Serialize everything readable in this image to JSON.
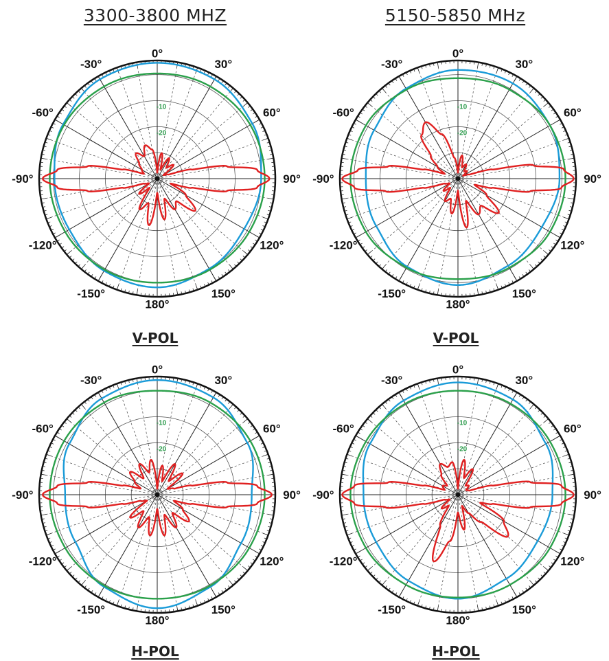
{
  "column_titles": [
    "3300-3800 MHZ",
    "5150-5850 MHz"
  ],
  "row_labels": [
    "V-POL",
    "V-POL",
    "H-POL",
    "H-POL"
  ],
  "chart_data": [
    {
      "type": "polar",
      "title": "3300-3800 MHZ",
      "xlabel": "V-POL",
      "angle_labels": [
        "0°",
        "30°",
        "60°",
        "90°",
        "120°",
        "150°",
        "180°",
        "-150°",
        "-120°",
        "-90°",
        "-60°",
        "-30°"
      ],
      "radial_labels": [
        "-10",
        "-20"
      ],
      "series": [
        {
          "color": "#1a9bd8",
          "theta": [
            0,
            30,
            60,
            90,
            120,
            150,
            180,
            210,
            240,
            270,
            300,
            330
          ],
          "r": [
            0.98,
            0.97,
            0.93,
            0.88,
            0.85,
            0.88,
            0.92,
            0.9,
            0.86,
            0.87,
            0.92,
            0.97
          ]
        },
        {
          "color": "#2aa04a",
          "theta": [
            0,
            30,
            60,
            90,
            120,
            150,
            180,
            210,
            240,
            270,
            300,
            330
          ],
          "r": [
            0.89,
            0.9,
            0.91,
            0.91,
            0.9,
            0.89,
            0.88,
            0.89,
            0.9,
            0.91,
            0.91,
            0.9
          ]
        },
        {
          "color": "#e02020",
          "theta": [
            0,
            10,
            20,
            30,
            40,
            50,
            60,
            70,
            75,
            80,
            85,
            90,
            95,
            100,
            105,
            110,
            120,
            130,
            140,
            150,
            160,
            170,
            180,
            190,
            200,
            210,
            220,
            230,
            240,
            250,
            255,
            260,
            265,
            270,
            275,
            280,
            285,
            290,
            300,
            310,
            320,
            330,
            340,
            350,
            360
          ],
          "r": [
            0.05,
            0.22,
            0.08,
            0.2,
            0.12,
            0.18,
            0.06,
            0.1,
            0.3,
            0.6,
            0.85,
            0.95,
            0.85,
            0.6,
            0.3,
            0.12,
            0.28,
            0.42,
            0.25,
            0.3,
            0.18,
            0.35,
            0.12,
            0.4,
            0.22,
            0.3,
            0.1,
            0.2,
            0.08,
            0.12,
            0.3,
            0.6,
            0.85,
            0.97,
            0.85,
            0.6,
            0.3,
            0.12,
            0.15,
            0.2,
            0.28,
            0.22,
            0.3,
            0.25,
            0.05
          ]
        }
      ]
    },
    {
      "type": "polar",
      "title": "5150-5850 MHz",
      "xlabel": "V-POL",
      "angle_labels": [
        "0°",
        "30°",
        "60°",
        "90°",
        "120°",
        "150°",
        "180°",
        "-150°",
        "-120°",
        "-90°",
        "-60°",
        "-30°"
      ],
      "radial_labels": [
        "-10",
        "-20"
      ],
      "series": [
        {
          "color": "#1a9bd8",
          "theta": [
            0,
            30,
            60,
            90,
            120,
            150,
            180,
            210,
            240,
            270,
            300,
            330
          ],
          "r": [
            0.92,
            0.93,
            0.9,
            0.86,
            0.82,
            0.85,
            0.9,
            0.86,
            0.8,
            0.78,
            0.82,
            0.88
          ]
        },
        {
          "color": "#2aa04a",
          "theta": [
            0,
            30,
            60,
            90,
            120,
            150,
            180,
            210,
            240,
            270,
            300,
            330
          ],
          "r": [
            0.85,
            0.87,
            0.9,
            0.91,
            0.9,
            0.87,
            0.85,
            0.87,
            0.9,
            0.91,
            0.9,
            0.87
          ]
        },
        {
          "color": "#e02020",
          "theta": [
            0,
            10,
            20,
            30,
            40,
            50,
            60,
            70,
            75,
            80,
            85,
            90,
            95,
            100,
            105,
            110,
            120,
            130,
            140,
            150,
            160,
            170,
            180,
            190,
            200,
            210,
            220,
            230,
            240,
            250,
            255,
            260,
            265,
            270,
            275,
            280,
            285,
            290,
            300,
            310,
            320,
            330,
            340,
            350,
            360
          ],
          "r": [
            0.05,
            0.2,
            0.1,
            0.14,
            0.08,
            0.1,
            0.05,
            0.1,
            0.3,
            0.65,
            0.9,
            0.98,
            0.88,
            0.62,
            0.3,
            0.15,
            0.28,
            0.45,
            0.3,
            0.35,
            0.2,
            0.42,
            0.1,
            0.3,
            0.18,
            0.22,
            0.1,
            0.16,
            0.08,
            0.12,
            0.3,
            0.62,
            0.88,
            0.98,
            0.85,
            0.6,
            0.3,
            0.12,
            0.2,
            0.3,
            0.48,
            0.55,
            0.4,
            0.18,
            0.05
          ]
        }
      ]
    },
    {
      "type": "polar",
      "title": "3300-3800 MHZ",
      "xlabel": "H-POL",
      "angle_labels": [
        "0°",
        "30°",
        "60°",
        "90°",
        "120°",
        "150°",
        "180°",
        "-150°",
        "-120°",
        "-90°",
        "-60°",
        "-30°"
      ],
      "radial_labels": [
        "-10",
        "-20"
      ],
      "series": [
        {
          "color": "#1a9bd8",
          "theta": [
            0,
            30,
            60,
            90,
            120,
            150,
            180,
            210,
            240,
            270,
            300,
            330
          ],
          "r": [
            0.97,
            0.95,
            0.88,
            0.8,
            0.82,
            0.9,
            0.96,
            0.9,
            0.8,
            0.78,
            0.86,
            0.94
          ]
        },
        {
          "color": "#2aa04a",
          "theta": [
            0,
            30,
            60,
            90,
            120,
            150,
            180,
            210,
            240,
            270,
            300,
            330
          ],
          "r": [
            0.88,
            0.9,
            0.91,
            0.91,
            0.9,
            0.89,
            0.88,
            0.89,
            0.9,
            0.91,
            0.91,
            0.9
          ]
        },
        {
          "color": "#e02020",
          "theta": [
            0,
            10,
            20,
            30,
            40,
            50,
            60,
            70,
            75,
            80,
            85,
            90,
            95,
            100,
            105,
            110,
            120,
            130,
            140,
            150,
            160,
            170,
            180,
            190,
            200,
            210,
            220,
            230,
            240,
            250,
            255,
            260,
            265,
            270,
            275,
            280,
            285,
            290,
            300,
            310,
            320,
            330,
            340,
            350,
            360
          ],
          "r": [
            0.05,
            0.25,
            0.12,
            0.3,
            0.15,
            0.28,
            0.1,
            0.15,
            0.3,
            0.6,
            0.85,
            0.97,
            0.85,
            0.6,
            0.3,
            0.15,
            0.25,
            0.35,
            0.2,
            0.32,
            0.18,
            0.35,
            0.12,
            0.35,
            0.2,
            0.32,
            0.18,
            0.3,
            0.1,
            0.15,
            0.3,
            0.6,
            0.85,
            0.97,
            0.85,
            0.6,
            0.3,
            0.15,
            0.22,
            0.3,
            0.18,
            0.3,
            0.2,
            0.3,
            0.05
          ]
        }
      ]
    },
    {
      "type": "polar",
      "title": "5150-5850 MHz",
      "xlabel": "H-POL",
      "angle_labels": [
        "0°",
        "30°",
        "60°",
        "90°",
        "120°",
        "150°",
        "180°",
        "-150°",
        "-120°",
        "-90°",
        "-60°",
        "-30°"
      ],
      "radial_labels": [
        "-10",
        "-20"
      ],
      "series": [
        {
          "color": "#1a9bd8",
          "theta": [
            0,
            30,
            60,
            90,
            120,
            150,
            180,
            210,
            240,
            270,
            300,
            330
          ],
          "r": [
            0.95,
            0.93,
            0.86,
            0.8,
            0.78,
            0.82,
            0.88,
            0.84,
            0.8,
            0.8,
            0.86,
            0.92
          ]
        },
        {
          "color": "#2aa04a",
          "theta": [
            0,
            30,
            60,
            90,
            120,
            150,
            180,
            210,
            240,
            270,
            300,
            330
          ],
          "r": [
            0.88,
            0.89,
            0.9,
            0.91,
            0.9,
            0.88,
            0.87,
            0.88,
            0.9,
            0.91,
            0.9,
            0.89
          ]
        },
        {
          "color": "#e02020",
          "theta": [
            0,
            10,
            20,
            30,
            40,
            50,
            60,
            70,
            75,
            80,
            85,
            90,
            95,
            100,
            105,
            110,
            120,
            130,
            140,
            150,
            160,
            170,
            180,
            190,
            200,
            210,
            220,
            230,
            240,
            250,
            255,
            260,
            265,
            270,
            275,
            280,
            285,
            290,
            300,
            310,
            320,
            330,
            340,
            350,
            360
          ],
          "r": [
            0.05,
            0.3,
            0.15,
            0.25,
            0.1,
            0.12,
            0.08,
            0.1,
            0.3,
            0.62,
            0.88,
            0.98,
            0.88,
            0.62,
            0.3,
            0.2,
            0.45,
            0.55,
            0.3,
            0.18,
            0.1,
            0.3,
            0.15,
            0.4,
            0.6,
            0.3,
            0.12,
            0.18,
            0.08,
            0.12,
            0.3,
            0.62,
            0.88,
            0.98,
            0.88,
            0.6,
            0.3,
            0.12,
            0.15,
            0.12,
            0.22,
            0.3,
            0.25,
            0.28,
            0.05
          ]
        }
      ]
    }
  ]
}
